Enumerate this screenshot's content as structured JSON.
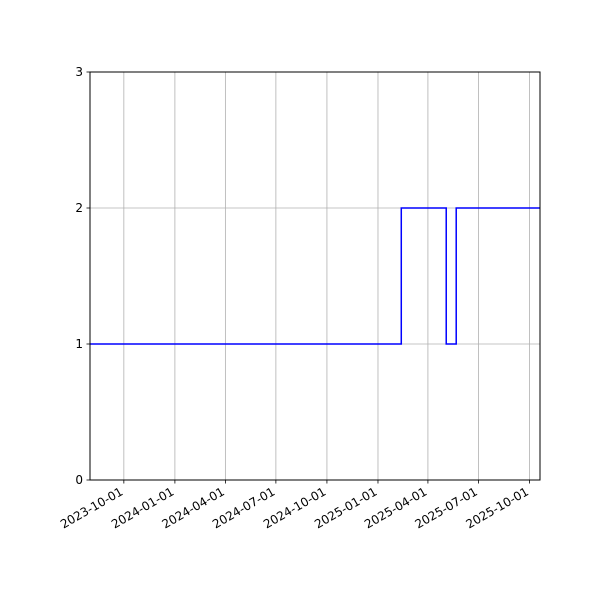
{
  "chart_data": {
    "type": "line",
    "title": "",
    "xlabel": "",
    "ylabel": "",
    "x_axis": {
      "kind": "date",
      "range": [
        "2023-08-01",
        "2025-10-20"
      ],
      "ticks": [
        "2023-10-01",
        "2024-01-01",
        "2024-04-01",
        "2024-07-01",
        "2024-10-01",
        "2025-01-01",
        "2025-04-01",
        "2025-07-01",
        "2025-10-01"
      ]
    },
    "y_axis": {
      "range": [
        0,
        3
      ],
      "ticks": [
        "0",
        "1",
        "2",
        "3"
      ]
    },
    "grid": true,
    "step": "post",
    "series": [
      {
        "color": "#0000ff",
        "points": [
          {
            "x": "2023-08-01",
            "y": 1
          },
          {
            "x": "2025-02-12",
            "y": 2
          },
          {
            "x": "2025-05-04",
            "y": 1
          },
          {
            "x": "2025-05-22",
            "y": 2
          },
          {
            "x": "2025-10-20",
            "y": 2
          }
        ]
      }
    ]
  }
}
